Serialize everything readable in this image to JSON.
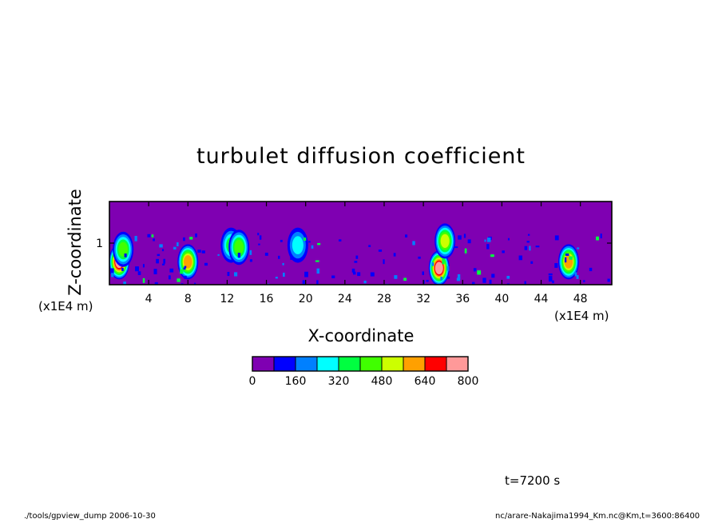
{
  "title": "turbulet diffusion coefficient",
  "footer": {
    "left": "./tools/gpview_dump  2006-10-30",
    "right": "nc/arare-Nakajima1994_Km.nc@Km,t=3600:86400"
  },
  "time_label": "t=7200 s",
  "chart_data": {
    "type": "heatmap",
    "title": "turbulet diffusion coefficient",
    "xlabel": "X-coordinate",
    "ylabel": "Z-coordinate",
    "x_unit": "(x1E4 m)",
    "y_unit": "(x1E4 m)",
    "xlim": [
      0,
      51.2
    ],
    "ylim": [
      0,
      2
    ],
    "x_ticks": [
      4,
      8,
      12,
      16,
      20,
      24,
      28,
      32,
      36,
      40,
      44,
      48
    ],
    "y_ticks": [
      1
    ],
    "colorbar": {
      "levels": [
        0,
        80,
        160,
        240,
        320,
        400,
        480,
        560,
        640,
        720,
        800
      ],
      "tick_labels": [
        "0",
        "160",
        "320",
        "480",
        "640",
        "800"
      ],
      "colors": [
        "#7f00b2",
        "#0000ff",
        "#0080ff",
        "#00ffff",
        "#00ff40",
        "#40ff00",
        "#ccff00",
        "#ffa000",
        "#ff0000",
        "#ff9999"
      ]
    },
    "features": [
      {
        "x": 1.0,
        "z": 0.55,
        "peak": 720
      },
      {
        "x": 1.4,
        "z": 0.85,
        "peak": 420
      },
      {
        "x": 8.0,
        "z": 0.55,
        "peak": 560
      },
      {
        "x": 12.4,
        "z": 0.95,
        "peak": 320
      },
      {
        "x": 13.2,
        "z": 0.9,
        "peak": 400
      },
      {
        "x": 19.2,
        "z": 0.95,
        "peak": 240
      },
      {
        "x": 33.6,
        "z": 0.4,
        "peak": 720
      },
      {
        "x": 34.2,
        "z": 1.05,
        "peak": 480
      },
      {
        "x": 46.8,
        "z": 0.55,
        "peak": 560
      }
    ]
  }
}
